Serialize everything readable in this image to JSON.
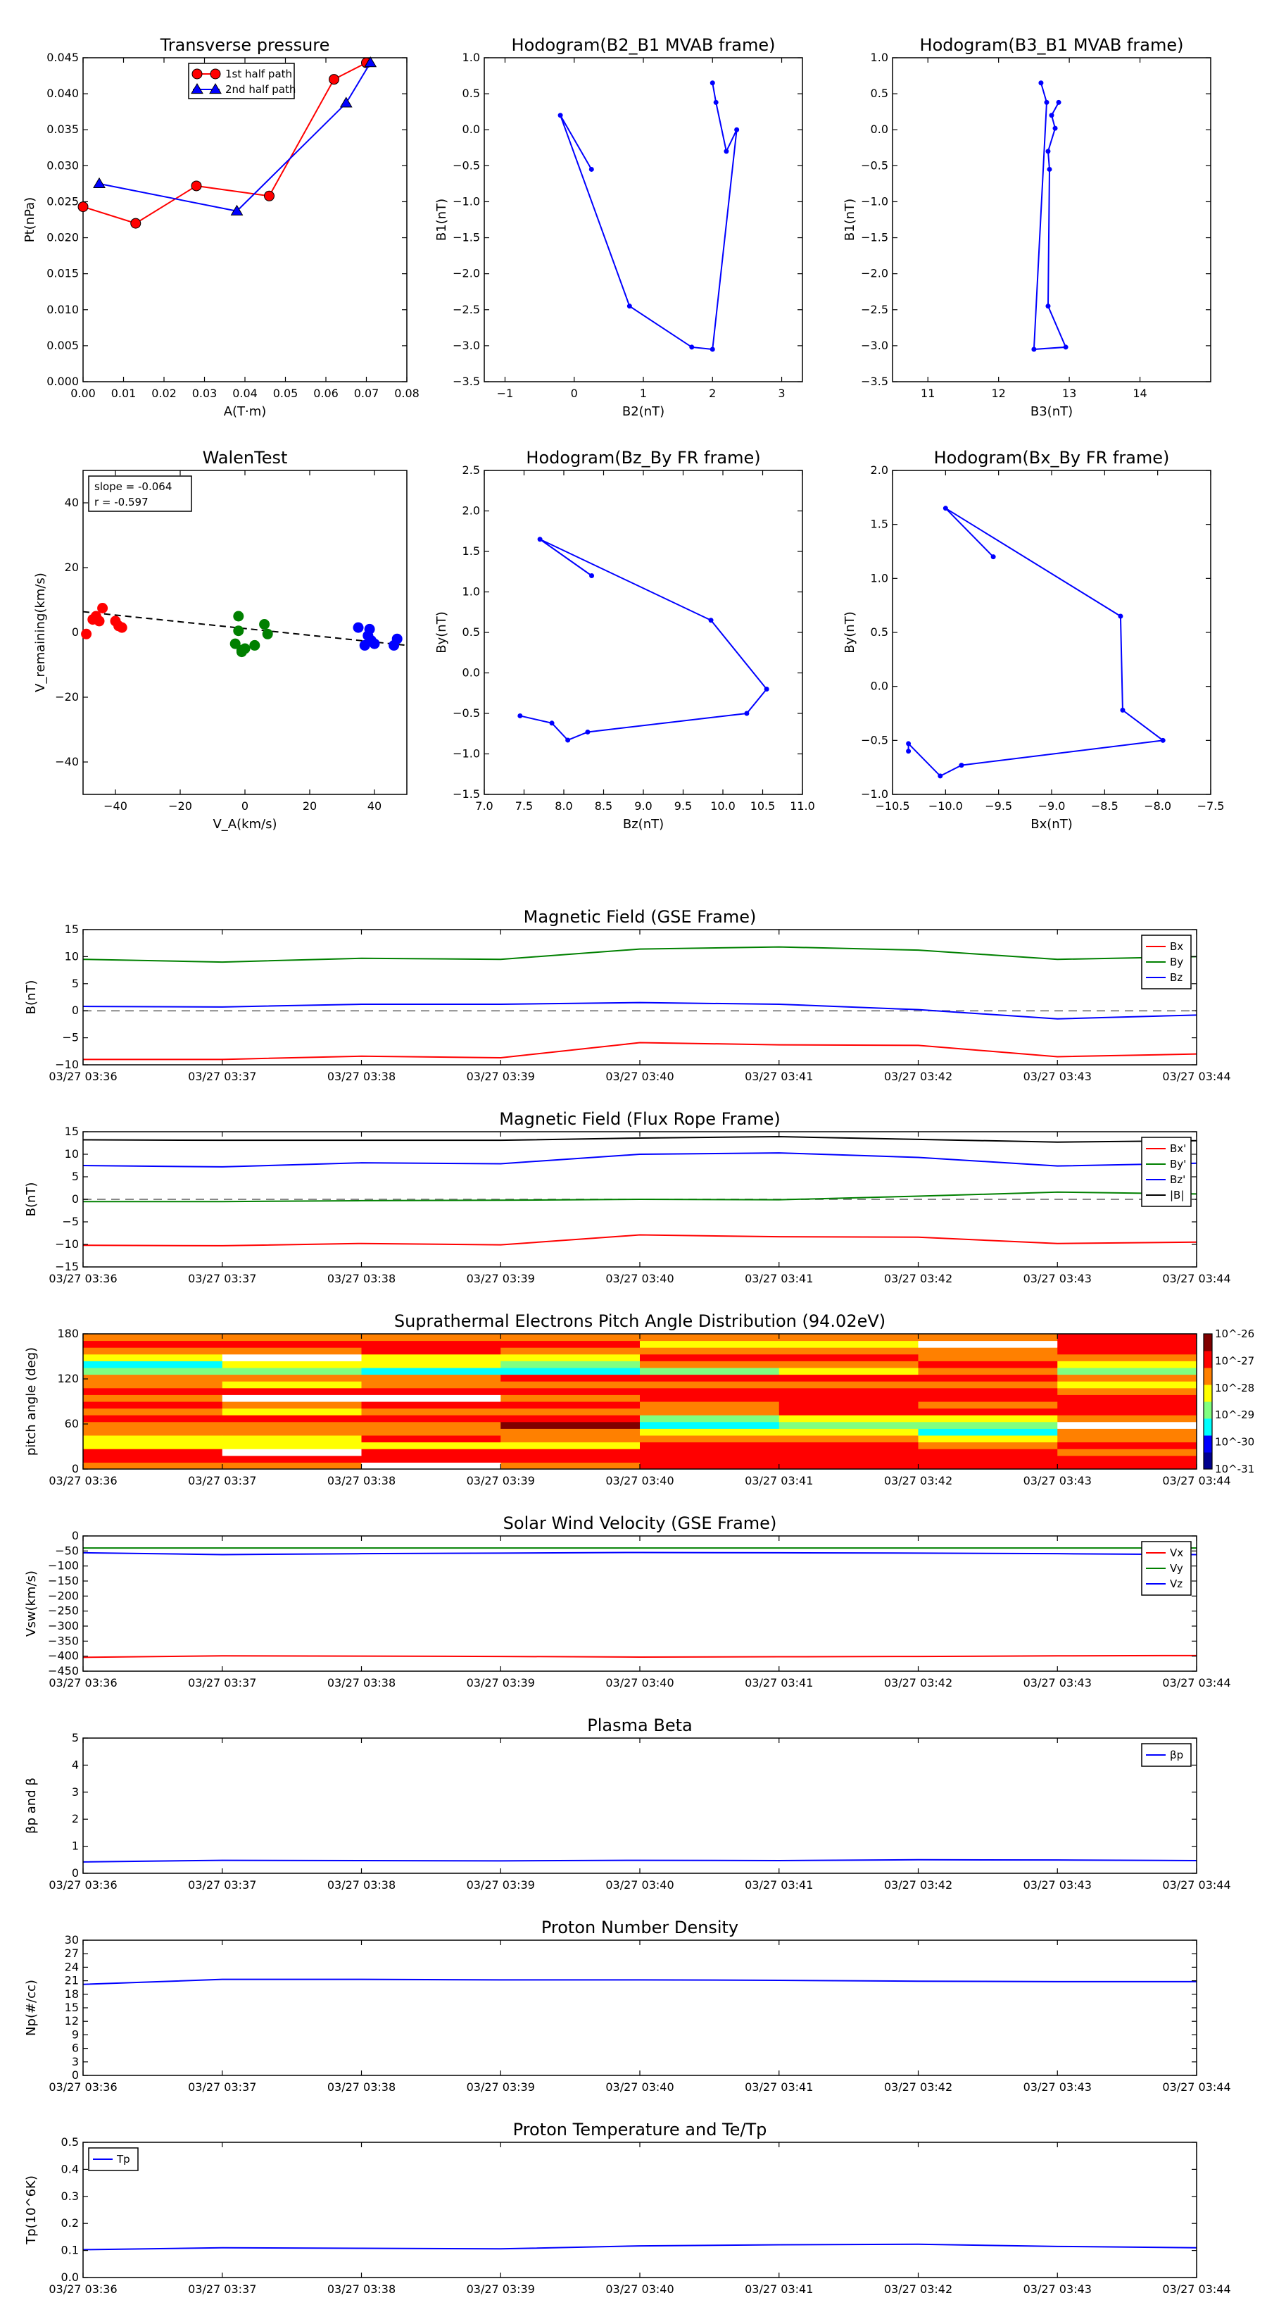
{
  "chart_data": [
    {
      "id": "transverse_pressure",
      "type": "line",
      "title": "Transverse pressure",
      "xlabel": "A(T·m)",
      "ylabel": "Pt(nPa)",
      "xlim": [
        0.0,
        0.08
      ],
      "ylim": [
        0.0,
        0.045
      ],
      "xticks": [
        "0.00",
        "0.01",
        "0.02",
        "0.03",
        "0.04",
        "0.05",
        "0.06",
        "0.07",
        "0.08"
      ],
      "yticks": [
        "0.000",
        "0.005",
        "0.010",
        "0.015",
        "0.020",
        "0.025",
        "0.030",
        "0.035",
        "0.040",
        "0.045"
      ],
      "legend_position": "upper-center",
      "series": [
        {
          "name": "1st half path",
          "color": "#ff0000",
          "marker": "circle",
          "x": [
            0.0,
            0.013,
            0.028,
            0.046,
            0.062,
            0.07
          ],
          "y": [
            0.0243,
            0.022,
            0.0272,
            0.0258,
            0.042,
            0.0443
          ]
        },
        {
          "name": "2nd half path",
          "color": "#0000ff",
          "marker": "triangle",
          "x": [
            0.004,
            0.038,
            0.065,
            0.071
          ],
          "y": [
            0.0275,
            0.0237,
            0.0387,
            0.0443
          ]
        }
      ]
    },
    {
      "id": "hodogram_b2_b1",
      "type": "line",
      "title": "Hodogram(B2_B1 MVAB frame)",
      "xlabel": "B2(nT)",
      "ylabel": "B1(nT)",
      "xlim": [
        -1.3,
        3.3
      ],
      "ylim": [
        -3.5,
        1.0
      ],
      "xticks": [
        "−1",
        "0",
        "1",
        "2",
        "3"
      ],
      "yticks": [
        "−3.5",
        "−3.0",
        "−2.5",
        "−2.0",
        "−1.5",
        "−1.0",
        "−0.5",
        "0.0",
        "0.5",
        "1.0"
      ],
      "series": [
        {
          "color": "#0000ff",
          "x": [
            0.25,
            -0.2,
            0.8,
            1.7,
            2.0,
            2.35,
            2.2,
            2.05,
            2.0
          ],
          "y": [
            -0.55,
            0.2,
            -2.45,
            -3.02,
            -3.05,
            0.0,
            -0.3,
            0.38,
            0.65
          ]
        }
      ]
    },
    {
      "id": "hodogram_b3_b1",
      "type": "line",
      "title": "Hodogram(B3_B1 MVAB frame)",
      "xlabel": "B3(nT)",
      "ylabel": "B1(nT)",
      "xlim": [
        10.5,
        15.0
      ],
      "ylim": [
        -3.5,
        1.0
      ],
      "xticks": [
        "11",
        "12",
        "13",
        "14"
      ],
      "yticks": [
        "−3.5",
        "−3.0",
        "−2.5",
        "−2.0",
        "−1.5",
        "−1.0",
        "−0.5",
        "0.0",
        "0.5",
        "1.0"
      ],
      "series": [
        {
          "color": "#0000ff",
          "x": [
            12.85,
            12.75,
            12.8,
            12.7,
            12.72,
            12.7,
            12.95,
            12.5,
            12.68,
            12.6
          ],
          "y": [
            0.38,
            0.2,
            0.02,
            -0.3,
            -0.55,
            -2.45,
            -3.02,
            -3.05,
            0.38,
            0.65
          ]
        }
      ]
    },
    {
      "id": "walen_test",
      "type": "scatter",
      "title": "WalenTest",
      "xlabel": "V_A(km/s)",
      "ylabel": "V_remaining(km/s)",
      "xlim": [
        -50,
        50
      ],
      "ylim": [
        -50,
        50
      ],
      "xticks": [
        "−40",
        "−20",
        "0",
        "20",
        "40"
      ],
      "yticks": [
        "−40",
        "−20",
        "0",
        "20",
        "40"
      ],
      "annotation": [
        "slope = -0.064",
        "r = -0.597"
      ],
      "fit": {
        "slope": -0.064,
        "intercept": -0.3
      },
      "series": [
        {
          "color": "#ff0000",
          "x": [
            -49,
            -47,
            -46,
            -45,
            -44,
            -40,
            -39,
            -38
          ],
          "y": [
            -0.5,
            4,
            5,
            3.5,
            7.5,
            3.5,
            2,
            1.5
          ]
        },
        {
          "color": "#008000",
          "x": [
            -3,
            -2,
            -2,
            -1,
            -1,
            0,
            3,
            6,
            7
          ],
          "y": [
            -3.5,
            5,
            0.5,
            -5.5,
            -6,
            -5,
            -4,
            2.5,
            -0.5
          ]
        },
        {
          "color": "#0000ff",
          "x": [
            35,
            37,
            38,
            38.5,
            39,
            40,
            46,
            47
          ],
          "y": [
            1.5,
            -4,
            -1,
            1,
            -2.5,
            -3.5,
            -4,
            -2
          ]
        }
      ]
    },
    {
      "id": "hodogram_bz_by",
      "type": "line",
      "title": "Hodogram(Bz_By FR frame)",
      "xlabel": "Bz(nT)",
      "ylabel": "By(nT)",
      "xlim": [
        7.0,
        11.0
      ],
      "ylim": [
        -1.5,
        2.5
      ],
      "xticks": [
        "7.0",
        "7.5",
        "8.0",
        "8.5",
        "9.0",
        "9.5",
        "10.0",
        "10.5",
        "11.0"
      ],
      "yticks": [
        "−1.5",
        "−1.0",
        "−0.5",
        "0.0",
        "0.5",
        "1.0",
        "1.5",
        "2.0",
        "2.5"
      ],
      "series": [
        {
          "color": "#0000ff",
          "x": [
            8.35,
            7.7,
            9.85,
            10.55,
            10.3,
            8.3,
            8.05,
            7.85,
            7.45
          ],
          "y": [
            1.2,
            1.65,
            0.65,
            -0.2,
            -0.5,
            -0.73,
            -0.83,
            -0.62,
            -0.53
          ]
        }
      ]
    },
    {
      "id": "hodogram_bx_by",
      "type": "line",
      "title": "Hodogram(Bx_By FR frame)",
      "xlabel": "Bx(nT)",
      "ylabel": "By(nT)",
      "xlim": [
        -10.5,
        -7.5
      ],
      "ylim": [
        -1.0,
        2.0
      ],
      "xticks": [
        "−10.5",
        "−10.0",
        "−9.5",
        "−9.0",
        "−8.5",
        "−8.0",
        "−7.5"
      ],
      "yticks": [
        "−1.0",
        "−0.5",
        "0.0",
        "0.5",
        "1.0",
        "1.5",
        "2.0"
      ],
      "series": [
        {
          "color": "#0000ff",
          "x": [
            -9.55,
            -10.0,
            -8.35,
            -8.33,
            -7.95,
            -9.85,
            -10.05,
            -10.35,
            -10.35
          ],
          "y": [
            1.2,
            1.65,
            0.65,
            -0.22,
            -0.5,
            -0.73,
            -0.83,
            -0.53,
            -0.6
          ]
        }
      ]
    },
    {
      "id": "mag_gse",
      "type": "line",
      "title": "Magnetic Field (GSE Frame)",
      "ylabel": "B(nT)",
      "categories": [
        "03/27 03:36",
        "03/27 03:37",
        "03/27 03:38",
        "03/27 03:39",
        "03/27 03:40",
        "03/27 03:41",
        "03/27 03:42",
        "03/27 03:43",
        "03/27 03:44"
      ],
      "ylim": [
        -10,
        15
      ],
      "yticks": [
        "−10",
        "−5",
        "0",
        "5",
        "10",
        "15"
      ],
      "legend_position": "upper-right",
      "zero_line": true,
      "series": [
        {
          "name": "Bx",
          "color": "#ff0000",
          "values": [
            -9.0,
            -9.0,
            -8.4,
            -8.7,
            -5.9,
            -6.3,
            -6.4,
            -8.5,
            -8.0
          ]
        },
        {
          "name": "By",
          "color": "#008000",
          "values": [
            9.5,
            9.0,
            9.7,
            9.5,
            11.4,
            11.8,
            11.2,
            9.5,
            10.0
          ]
        },
        {
          "name": "Bz",
          "color": "#0000ff",
          "values": [
            0.8,
            0.7,
            1.2,
            1.2,
            1.5,
            1.2,
            0.2,
            -1.5,
            -0.8
          ]
        }
      ]
    },
    {
      "id": "mag_fr",
      "type": "line",
      "title": "Magnetic Field (Flux Rope Frame)",
      "ylabel": "B(nT)",
      "categories": [
        "03/27 03:36",
        "03/27 03:37",
        "03/27 03:38",
        "03/27 03:39",
        "03/27 03:40",
        "03/27 03:41",
        "03/27 03:42",
        "03/27 03:43",
        "03/27 03:44"
      ],
      "ylim": [
        -15,
        15
      ],
      "yticks": [
        "−15",
        "−10",
        "−5",
        "0",
        "5",
        "10",
        "15"
      ],
      "legend_position": "upper-right",
      "zero_line": true,
      "series": [
        {
          "name": "Bx'",
          "color": "#ff0000",
          "values": [
            -10.2,
            -10.3,
            -9.8,
            -10.1,
            -7.9,
            -8.3,
            -8.4,
            -9.8,
            -9.5
          ]
        },
        {
          "name": "By'",
          "color": "#008000",
          "values": [
            -0.5,
            -0.5,
            -0.3,
            -0.2,
            0.0,
            -0.1,
            0.7,
            1.6,
            1.2
          ]
        },
        {
          "name": "Bz'",
          "color": "#0000ff",
          "values": [
            7.5,
            7.2,
            8.1,
            7.9,
            10.0,
            10.3,
            9.3,
            7.4,
            8.0
          ]
        },
        {
          "name": "|B|",
          "color": "#000000",
          "values": [
            13.2,
            13.1,
            13.1,
            13.1,
            13.6,
            13.9,
            13.3,
            12.7,
            13.0
          ]
        }
      ]
    },
    {
      "id": "pad",
      "type": "heatmap",
      "title": "Suprathermal Electrons Pitch Angle Distribution (94.02eV)",
      "ylabel": "pitch angle (deg)",
      "categories": [
        "03/27 03:36",
        "03/27 03:37",
        "03/27 03:38",
        "03/27 03:39",
        "03/27 03:40",
        "03/27 03:41",
        "03/27 03:42",
        "03/27 03:43",
        "03/27 03:44"
      ],
      "ylim": [
        0,
        180
      ],
      "yticks": [
        "0",
        "60",
        "120",
        "180"
      ],
      "colorbar_ticks": [
        "10^-26",
        "10^-27",
        "10^-28",
        "10^-29",
        "10^-30",
        "10^-31"
      ],
      "colorscale": [
        "#00008f",
        "#0000ff",
        "#00ffff",
        "#80ff80",
        "#ffff00",
        "#ff8000",
        "#ff0000",
        "#800000"
      ],
      "bins": 20,
      "columns": [
        [
          5,
          6,
          6,
          4,
          4,
          5,
          5,
          6,
          5,
          6,
          5,
          6,
          5,
          5,
          3,
          2,
          4,
          5,
          6,
          5
        ],
        [
          5,
          6,
          -1,
          4,
          4,
          5,
          5,
          6,
          4,
          5,
          -1,
          6,
          4,
          5,
          3,
          4,
          -1,
          5,
          6,
          5
        ],
        [
          -1,
          6,
          6,
          4,
          6,
          5,
          5,
          6,
          5,
          6,
          -1,
          6,
          5,
          5,
          2,
          4,
          4,
          6,
          6,
          5
        ],
        [
          5,
          6,
          6,
          4,
          5,
          5,
          7,
          6,
          5,
          6,
          5,
          6,
          5,
          6,
          2,
          3,
          4,
          5,
          6,
          5
        ],
        [
          6,
          6,
          6,
          6,
          5,
          4,
          2,
          3,
          5,
          5,
          6,
          6,
          5,
          6,
          3,
          5,
          6,
          5,
          4,
          5
        ],
        [
          6,
          6,
          6,
          6,
          5,
          4,
          3,
          4,
          6,
          6,
          6,
          6,
          5,
          6,
          4,
          5,
          6,
          5,
          4,
          5
        ],
        [
          6,
          6,
          6,
          5,
          4,
          2,
          3,
          4,
          6,
          5,
          6,
          6,
          5,
          6,
          5,
          6,
          5,
          5,
          -1,
          5
        ],
        [
          6,
          6,
          5,
          6,
          5,
          5,
          -1,
          5,
          6,
          6,
          6,
          5,
          4,
          5,
          3,
          4,
          5,
          6,
          6,
          6
        ]
      ]
    },
    {
      "id": "vsw",
      "type": "line",
      "title": "Solar Wind Velocity (GSE Frame)",
      "ylabel": "Vsw(km/s)",
      "categories": [
        "03/27 03:36",
        "03/27 03:37",
        "03/27 03:38",
        "03/27 03:39",
        "03/27 03:40",
        "03/27 03:41",
        "03/27 03:42",
        "03/27 03:43",
        "03/27 03:44"
      ],
      "ylim": [
        -450,
        0
      ],
      "yticks": [
        "−450",
        "−400",
        "−350",
        "−300",
        "−250",
        "−200",
        "−150",
        "−100",
        "−50",
        "0"
      ],
      "legend_position": "upper-right",
      "series": [
        {
          "name": "Vx",
          "color": "#ff0000",
          "values": [
            -404,
            -399,
            -400,
            -401,
            -403,
            -402,
            -401,
            -399,
            -398
          ]
        },
        {
          "name": "Vy",
          "color": "#008000",
          "values": [
            -40,
            -40,
            -40,
            -40,
            -40,
            -40,
            -40,
            -40,
            -40
          ]
        },
        {
          "name": "Vz",
          "color": "#0000ff",
          "values": [
            -56,
            -62,
            -59,
            -57,
            -55,
            -56,
            -57,
            -59,
            -62
          ]
        }
      ]
    },
    {
      "id": "beta",
      "type": "line",
      "title": "Plasma Beta",
      "ylabel": "βp and β",
      "categories": [
        "03/27 03:36",
        "03/27 03:37",
        "03/27 03:38",
        "03/27 03:39",
        "03/27 03:40",
        "03/27 03:41",
        "03/27 03:42",
        "03/27 03:43",
        "03/27 03:44"
      ],
      "ylim": [
        0,
        5
      ],
      "yticks": [
        "0",
        "1",
        "2",
        "3",
        "4",
        "5"
      ],
      "legend_position": "upper-right",
      "series": [
        {
          "name": "βp",
          "color": "#0000ff",
          "values": [
            0.42,
            0.48,
            0.47,
            0.46,
            0.48,
            0.47,
            0.5,
            0.49,
            0.47
          ]
        }
      ]
    },
    {
      "id": "np",
      "type": "line",
      "title": "Proton Number Density",
      "ylabel": "Np(#/cc)",
      "categories": [
        "03/27 03:36",
        "03/27 03:37",
        "03/27 03:38",
        "03/27 03:39",
        "03/27 03:40",
        "03/27 03:41",
        "03/27 03:42",
        "03/27 03:43",
        "03/27 03:44"
      ],
      "ylim": [
        0,
        30
      ],
      "yticks": [
        "0",
        "3",
        "6",
        "9",
        "12",
        "15",
        "18",
        "21",
        "24",
        "27",
        "30"
      ],
      "series": [
        {
          "color": "#0000ff",
          "values": [
            20.2,
            21.3,
            21.3,
            21.2,
            21.2,
            21.1,
            20.9,
            20.8,
            20.8
          ]
        }
      ]
    },
    {
      "id": "tp",
      "type": "line",
      "title": "Proton Temperature and Te/Tp",
      "ylabel": "Tp(10^6K)",
      "categories": [
        "03/27 03:36",
        "03/27 03:37",
        "03/27 03:38",
        "03/27 03:39",
        "03/27 03:40",
        "03/27 03:41",
        "03/27 03:42",
        "03/27 03:43",
        "03/27 03:44"
      ],
      "ylim": [
        0,
        0.5
      ],
      "yticks": [
        "0.0",
        "0.1",
        "0.2",
        "0.3",
        "0.4",
        "0.5"
      ],
      "legend_position": "upper-left",
      "series": [
        {
          "name": "Tp",
          "color": "#0000ff",
          "values": [
            0.103,
            0.11,
            0.108,
            0.106,
            0.117,
            0.121,
            0.123,
            0.115,
            0.11
          ]
        }
      ]
    }
  ]
}
